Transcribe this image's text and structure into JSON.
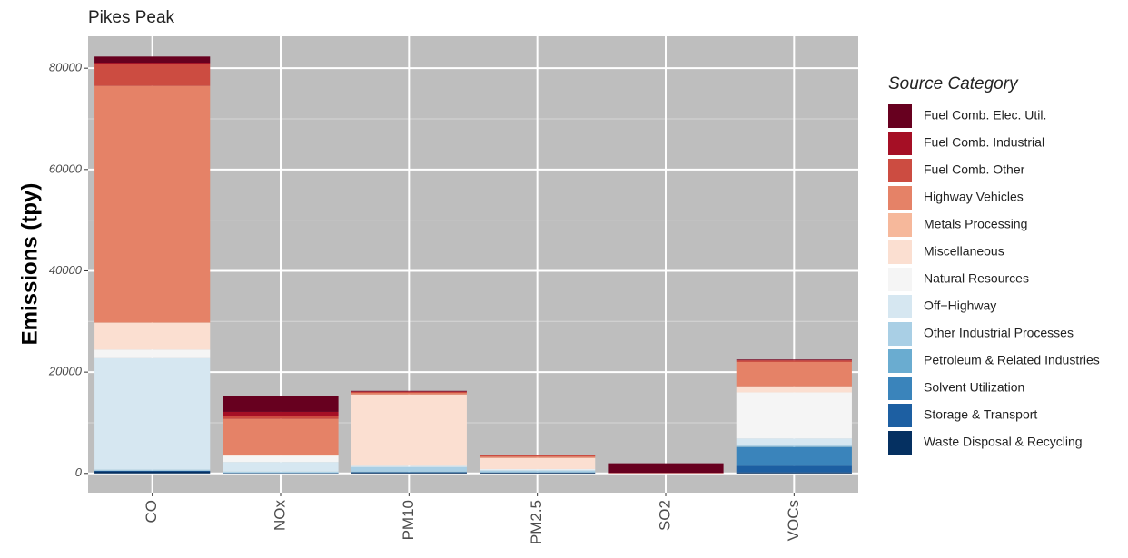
{
  "chart_data": {
    "type": "stacked_bar",
    "title": "Pikes Peak",
    "y_label": "Emissions (tpy)",
    "legend_title": "Source Category",
    "legend_position": "right",
    "grid": true,
    "categories": [
      "CO",
      "NOx",
      "PM10",
      "PM2.5",
      "SO2",
      "VOCs"
    ],
    "ylim": [
      -3800,
      86300
    ],
    "yticks": [
      0,
      20000,
      40000,
      60000,
      80000
    ],
    "series": [
      {
        "name": "Fuel Comb. Elec. Util.",
        "color": "#67001f",
        "values": [
          1200,
          3200,
          100,
          100,
          1900,
          100
        ]
      },
      {
        "name": "Fuel Comb. Industrial",
        "color": "#a50f25",
        "values": [
          200,
          900,
          100,
          80,
          50,
          100
        ]
      },
      {
        "name": "Fuel Comb. Other",
        "color": "#cc4c41",
        "values": [
          4400,
          500,
          200,
          200,
          20,
          300
        ]
      },
      {
        "name": "Highway Vehicles",
        "color": "#e58267",
        "values": [
          46700,
          7200,
          300,
          250,
          30,
          4800
        ]
      },
      {
        "name": "Metals Processing",
        "color": "#f6b89b",
        "values": [
          50,
          0,
          50,
          30,
          0,
          0
        ]
      },
      {
        "name": "Miscellaneous",
        "color": "#fbdfd1",
        "values": [
          5300,
          100,
          14000,
          2200,
          0,
          1200
        ]
      },
      {
        "name": "Natural Resources",
        "color": "#f5f5f5",
        "values": [
          1700,
          1200,
          100,
          100,
          0,
          9100
        ]
      },
      {
        "name": "Off−Highway",
        "color": "#d6e7f1",
        "values": [
          22000,
          1900,
          200,
          200,
          0,
          1400
        ]
      },
      {
        "name": "Other Industrial Processes",
        "color": "#a9cfe5",
        "values": [
          200,
          200,
          900,
          300,
          0,
          200
        ]
      },
      {
        "name": "Petroleum & Related Industries",
        "color": "#6aacd0",
        "values": [
          50,
          50,
          100,
          80,
          0,
          100
        ]
      },
      {
        "name": "Solvent Utilization",
        "color": "#3a84bb",
        "values": [
          0,
          0,
          0,
          0,
          0,
          3700
        ]
      },
      {
        "name": "Storage & Transport",
        "color": "#1d5fa2",
        "values": [
          100,
          0,
          50,
          30,
          0,
          1300
        ]
      },
      {
        "name": "Waste Disposal & Recycling",
        "color": "#053061",
        "values": [
          400,
          100,
          200,
          150,
          0,
          200
        ]
      }
    ]
  }
}
